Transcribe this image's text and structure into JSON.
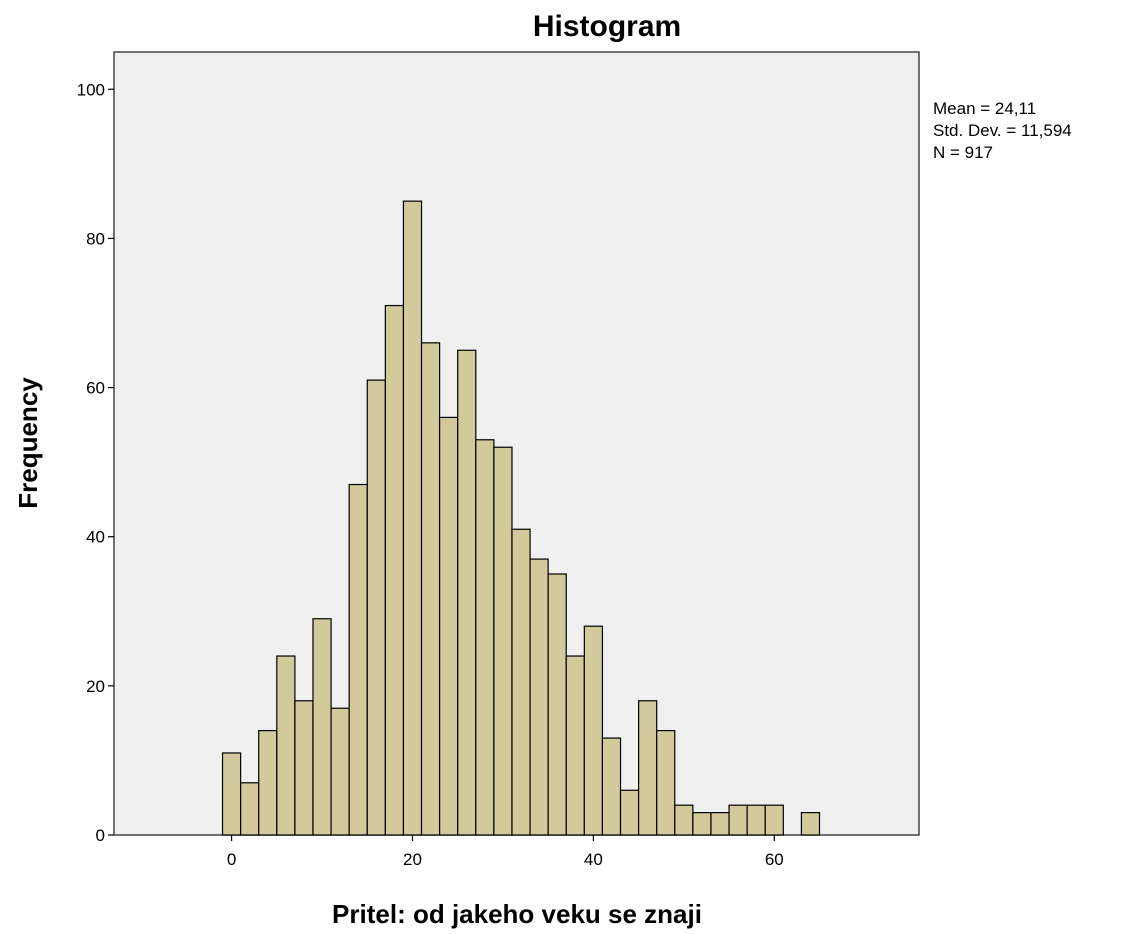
{
  "chart_data": {
    "type": "bar",
    "title": "Histogram",
    "xlabel": "Pritel: od jakeho veku se znaji",
    "ylabel": "Frequency",
    "xlim": [
      -13,
      76
    ],
    "ylim": [
      0,
      105
    ],
    "x_ticks": [
      0,
      20,
      40,
      60
    ],
    "y_ticks": [
      0,
      20,
      40,
      60,
      80,
      100
    ],
    "bin_width": 2,
    "bin_starts": [
      -1,
      1,
      3,
      5,
      7,
      9,
      11,
      13,
      15,
      17,
      19,
      21,
      23,
      25,
      27,
      29,
      31,
      33,
      35,
      37,
      39,
      41,
      43,
      45,
      47,
      49,
      51,
      53,
      55,
      57,
      59,
      63
    ],
    "values": [
      11,
      7,
      14,
      24,
      18,
      29,
      17,
      47,
      61,
      71,
      85,
      66,
      56,
      65,
      53,
      52,
      41,
      37,
      35,
      24,
      28,
      13,
      6,
      18,
      14,
      4,
      3,
      3,
      4,
      4,
      4,
      3
    ],
    "grid": false,
    "legend": "none",
    "colors": {
      "bar_fill": "#D3CA9B",
      "bar_stroke": "#000000",
      "plot_background": "#F0F0F0"
    },
    "stats": [
      "Mean = 24,11",
      "Std. Dev. = 11,594",
      "N = 917"
    ]
  }
}
